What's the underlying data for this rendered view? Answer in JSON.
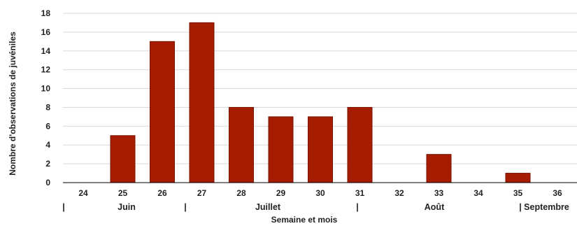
{
  "chart_data": {
    "type": "bar",
    "title": "",
    "xlabel": "Semaine et mois",
    "ylabel": "Nombre d'observations de juvéniles",
    "categories": [
      "24",
      "25",
      "26",
      "27",
      "28",
      "29",
      "30",
      "31",
      "32",
      "33",
      "34",
      "35",
      "36"
    ],
    "values": [
      0,
      5,
      15,
      17,
      8,
      7,
      7,
      8,
      0,
      3,
      0,
      1,
      0
    ],
    "ylim": [
      0,
      18
    ],
    "yticks": [
      0,
      2,
      4,
      6,
      8,
      10,
      12,
      14,
      16,
      18
    ],
    "grid": true,
    "bar_color": "#A51C00",
    "months": [
      {
        "label": "|",
        "at": "24"
      },
      {
        "label": "Juin",
        "at": "25"
      },
      {
        "label": "|",
        "at": "27"
      },
      {
        "label": "Juillet",
        "at": "29"
      },
      {
        "label": "|",
        "at": "31"
      },
      {
        "label": "Août",
        "at": "33"
      },
      {
        "label": "| Septembre",
        "at": "35-36"
      }
    ]
  }
}
